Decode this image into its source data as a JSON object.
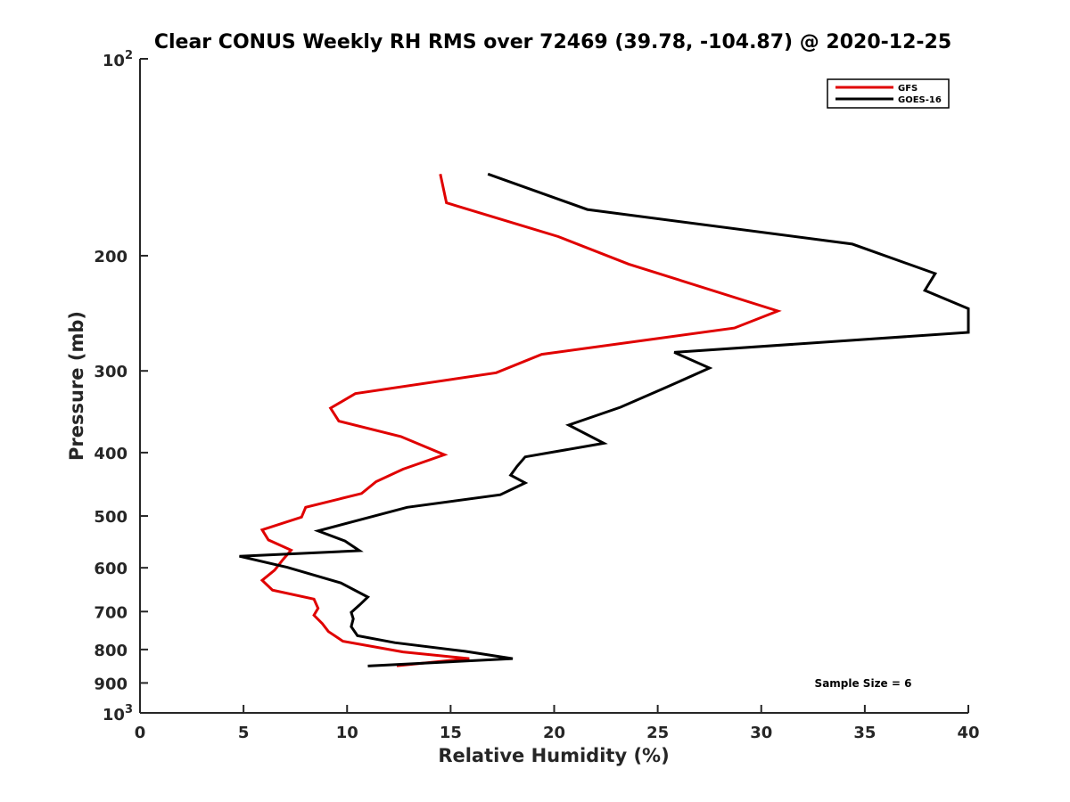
{
  "chart_data": {
    "type": "line",
    "title": "Clear CONUS Weekly RH RMS over 72469 (39.78, -104.87) @ 2020-12-25",
    "xlabel": "Relative Humidity (%)",
    "ylabel": "Pressure (mb)",
    "xlim": [
      0,
      40
    ],
    "ylim": [
      100,
      1000
    ],
    "y_scale": "log",
    "y_reversed": true,
    "grid": false,
    "legend_position": "top-right",
    "x_ticks": [
      0,
      5,
      10,
      15,
      20,
      25,
      30,
      35,
      40
    ],
    "y_ticks": [
      {
        "value": 100,
        "base": "10",
        "exp": "2",
        "label": ""
      },
      {
        "value": 200,
        "label": "200"
      },
      {
        "value": 300,
        "label": "300"
      },
      {
        "value": 400,
        "label": "400"
      },
      {
        "value": 500,
        "label": "500"
      },
      {
        "value": 600,
        "label": "600"
      },
      {
        "value": 700,
        "label": "700"
      },
      {
        "value": 800,
        "label": "800"
      },
      {
        "value": 900,
        "label": "900"
      },
      {
        "value": 1000,
        "base": "10",
        "exp": "3",
        "label": ""
      }
    ],
    "annotation": "Sample Size = 6",
    "series": [
      {
        "name": "GFS",
        "color": "#e00000",
        "points": [
          [
            14.5,
            150
          ],
          [
            14.8,
            166
          ],
          [
            20.2,
            187
          ],
          [
            23.6,
            206
          ],
          [
            30.8,
            243
          ],
          [
            28.7,
            258
          ],
          [
            19.4,
            283
          ],
          [
            17.2,
            302
          ],
          [
            10.4,
            325
          ],
          [
            9.2,
            342
          ],
          [
            9.6,
            358
          ],
          [
            12.6,
            378
          ],
          [
            14.7,
            403
          ],
          [
            12.7,
            424
          ],
          [
            11.4,
            443
          ],
          [
            10.7,
            462
          ],
          [
            8.0,
            485
          ],
          [
            7.8,
            502
          ],
          [
            5.9,
            525
          ],
          [
            6.2,
            544
          ],
          [
            7.3,
            564
          ],
          [
            6.9,
            583
          ],
          [
            6.5,
            605
          ],
          [
            5.9,
            627
          ],
          [
            6.4,
            649
          ],
          [
            8.4,
            670
          ],
          [
            8.6,
            692
          ],
          [
            8.4,
            709
          ],
          [
            8.8,
            730
          ],
          [
            9.1,
            751
          ],
          [
            9.8,
            777
          ],
          [
            12.7,
            807
          ],
          [
            15.9,
            826
          ],
          [
            12.4,
            847
          ]
        ]
      },
      {
        "name": "GOES-16",
        "color": "#000000",
        "points": [
          [
            16.8,
            150
          ],
          [
            21.6,
            170
          ],
          [
            34.4,
            192
          ],
          [
            38.4,
            213
          ],
          [
            37.9,
            226
          ],
          [
            40.0,
            241
          ],
          [
            40.0,
            262
          ],
          [
            25.8,
            281
          ],
          [
            27.5,
            297
          ],
          [
            25.4,
            318
          ],
          [
            23.2,
            341
          ],
          [
            20.7,
            363
          ],
          [
            22.4,
            387
          ],
          [
            18.6,
            406
          ],
          [
            18.2,
            420
          ],
          [
            17.9,
            433
          ],
          [
            18.6,
            445
          ],
          [
            17.4,
            464
          ],
          [
            12.9,
            485
          ],
          [
            8.6,
            527
          ],
          [
            9.9,
            546
          ],
          [
            10.6,
            565
          ],
          [
            4.8,
            576
          ],
          [
            7.1,
            599
          ],
          [
            9.7,
            633
          ],
          [
            11.0,
            665
          ],
          [
            10.6,
            684
          ],
          [
            10.2,
            702
          ],
          [
            10.3,
            718
          ],
          [
            10.2,
            738
          ],
          [
            10.5,
            762
          ],
          [
            12.3,
            781
          ],
          [
            15.7,
            805
          ],
          [
            18.0,
            826
          ],
          [
            11.0,
            848
          ]
        ]
      }
    ]
  }
}
